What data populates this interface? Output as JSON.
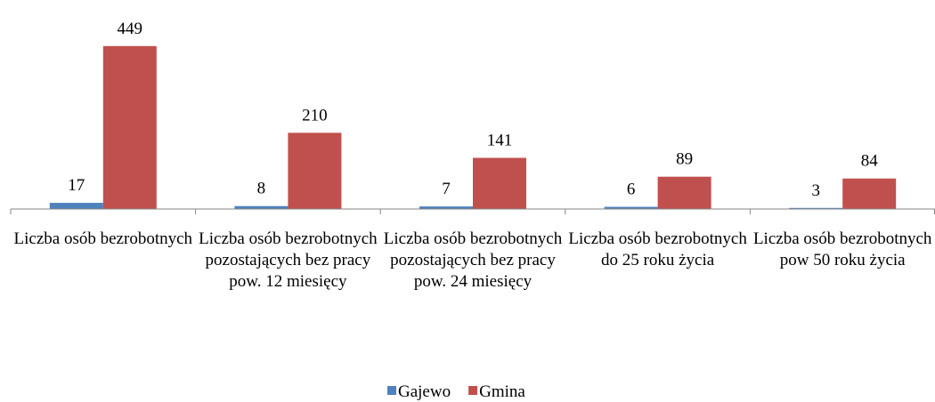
{
  "chart_data": {
    "type": "bar",
    "categories": [
      "Liczba osób bezrobotnych",
      "Liczba osób bezrobotnych pozostających bez pracy pow. 12 miesięcy",
      "Liczba osób bezrobotnych pozostających bez pracy pow. 24 miesięcy",
      "Liczba osób bezrobotnych do 25 roku życia",
      "Liczba osób bezrobotnych pow 50 roku życia"
    ],
    "series": [
      {
        "name": "Gajewo",
        "color": "#4f81bd",
        "values": [
          17,
          8,
          7,
          6,
          3
        ]
      },
      {
        "name": "Gmina",
        "color": "#c0504d",
        "values": [
          449,
          210,
          141,
          89,
          84
        ]
      }
    ],
    "ylim": [
      0,
      500
    ],
    "legend": "bottom"
  }
}
